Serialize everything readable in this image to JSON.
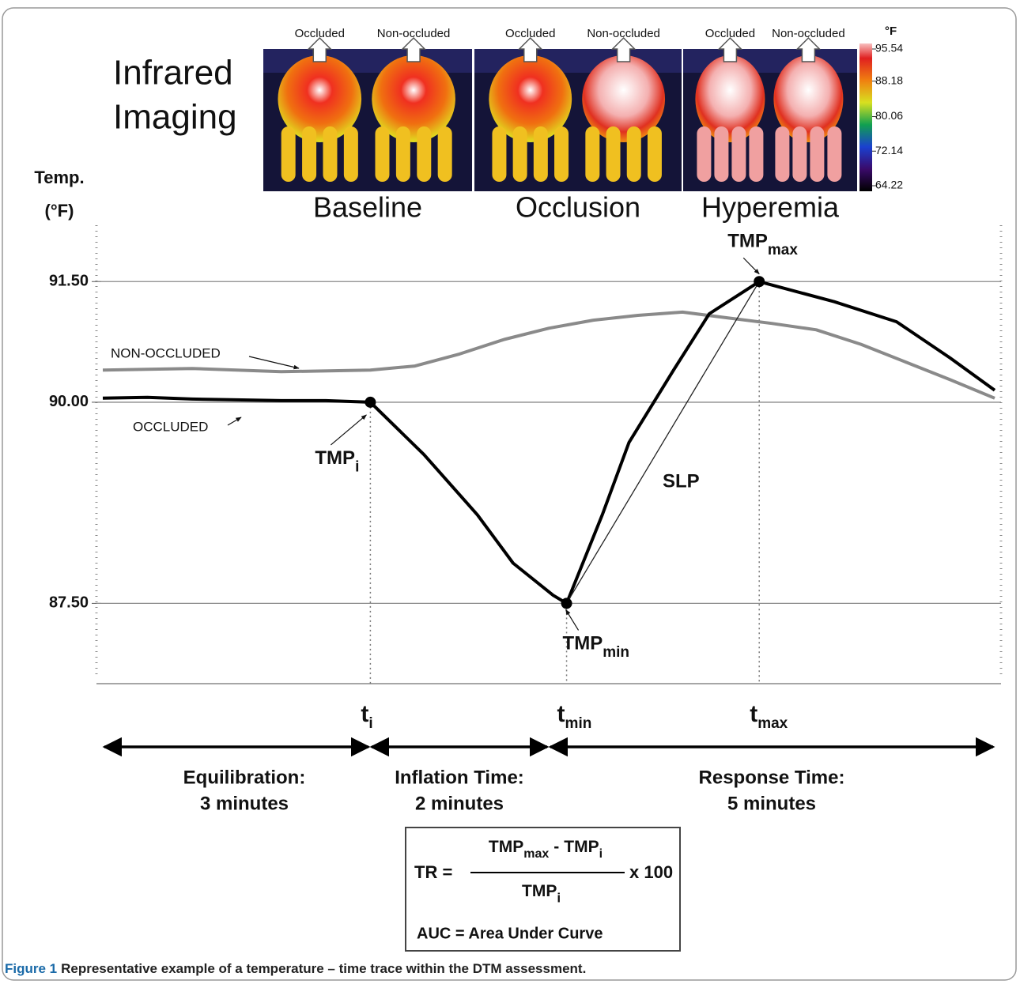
{
  "infrared": {
    "title_lines": [
      "Infrared",
      "Imaging"
    ],
    "panels": [
      {
        "label": "Baseline",
        "left": "Occluded",
        "right": "Non-occluded"
      },
      {
        "label": "Occlusion",
        "left": "Occluded",
        "right": "Non-occluded"
      },
      {
        "label": "Hyperemia",
        "left": "Occluded",
        "right": "Non-occluded"
      }
    ],
    "colorbar": {
      "unit": "°F",
      "ticks": [
        95.54,
        88.18,
        80.06,
        72.14,
        64.22
      ]
    }
  },
  "chart_data": {
    "type": "line",
    "ylabel_lines": [
      "Temp.",
      "(°F)"
    ],
    "xlim": [
      0,
      10
    ],
    "ylim": [
      86.6,
      92.2
    ],
    "yticks": [
      {
        "value": 91.5,
        "label": "91.50"
      },
      {
        "value": 90,
        "label": "90.00"
      },
      {
        "value": 87.5,
        "label": "87.50"
      }
    ],
    "grid": true,
    "series": [
      {
        "name": "NON-OCCLUDED",
        "color": "#8a8a8a",
        "x": [
          0,
          1,
          2,
          3,
          3.5,
          4,
          4.5,
          5,
          5.5,
          6,
          6.5,
          7,
          7.5,
          8,
          8.5,
          9,
          9.5,
          10
        ],
        "values": [
          90.4,
          90.42,
          90.38,
          90.4,
          90.45,
          90.6,
          90.78,
          90.92,
          91.02,
          91.08,
          91.12,
          91.05,
          90.98,
          90.9,
          90.72,
          90.5,
          90.28,
          90.05
        ]
      },
      {
        "name": "OCCLUDED",
        "color": "#000000",
        "x": [
          0,
          0.5,
          1,
          1.5,
          2,
          2.5,
          3,
          3.6,
          4.2,
          4.6,
          5.05,
          5.2,
          5.6,
          5.9,
          6.4,
          6.8,
          7.36,
          8.2,
          8.9,
          9.5,
          10
        ],
        "values": [
          90.05,
          90.06,
          90.04,
          90.03,
          90.02,
          90.02,
          90.0,
          89.35,
          88.6,
          88.0,
          87.6,
          87.5,
          88.6,
          89.5,
          90.4,
          91.1,
          91.5,
          91.25,
          91.0,
          90.55,
          90.15
        ]
      }
    ],
    "points": [
      {
        "label": {
          "text": "TMP",
          "sub": "i"
        },
        "time": {
          "text": "t",
          "sub": "i"
        },
        "x": 3,
        "value": 90.0
      },
      {
        "label": {
          "text": "TMP",
          "sub": "min"
        },
        "time": {
          "text": "t",
          "sub": "min"
        },
        "x": 5.2,
        "value": 87.5
      },
      {
        "label": {
          "text": "TMP",
          "sub": "max"
        },
        "time": {
          "text": "t",
          "sub": "max"
        },
        "x": 7.36,
        "value": 91.5
      }
    ],
    "slope_label": "SLP"
  },
  "phases": [
    {
      "lines": [
        "Equilibration:",
        "3 minutes"
      ]
    },
    {
      "lines": [
        "Inflation Time:",
        "2 minutes"
      ]
    },
    {
      "lines": [
        "Response Time:",
        "5 minutes"
      ]
    }
  ],
  "formula": {
    "lhs": "TR =",
    "numerator": [
      {
        "text": "TMP",
        "sub": "max"
      },
      "-",
      {
        "text": "TMP",
        "sub": "i"
      }
    ],
    "denominator": {
      "text": "TMP",
      "sub": "i"
    },
    "factor": "x 100",
    "note": "AUC = Area Under Curve"
  },
  "caption": {
    "label": "Figure 1",
    "text": "Representative example of a temperature – time trace within the DTM assessment."
  }
}
